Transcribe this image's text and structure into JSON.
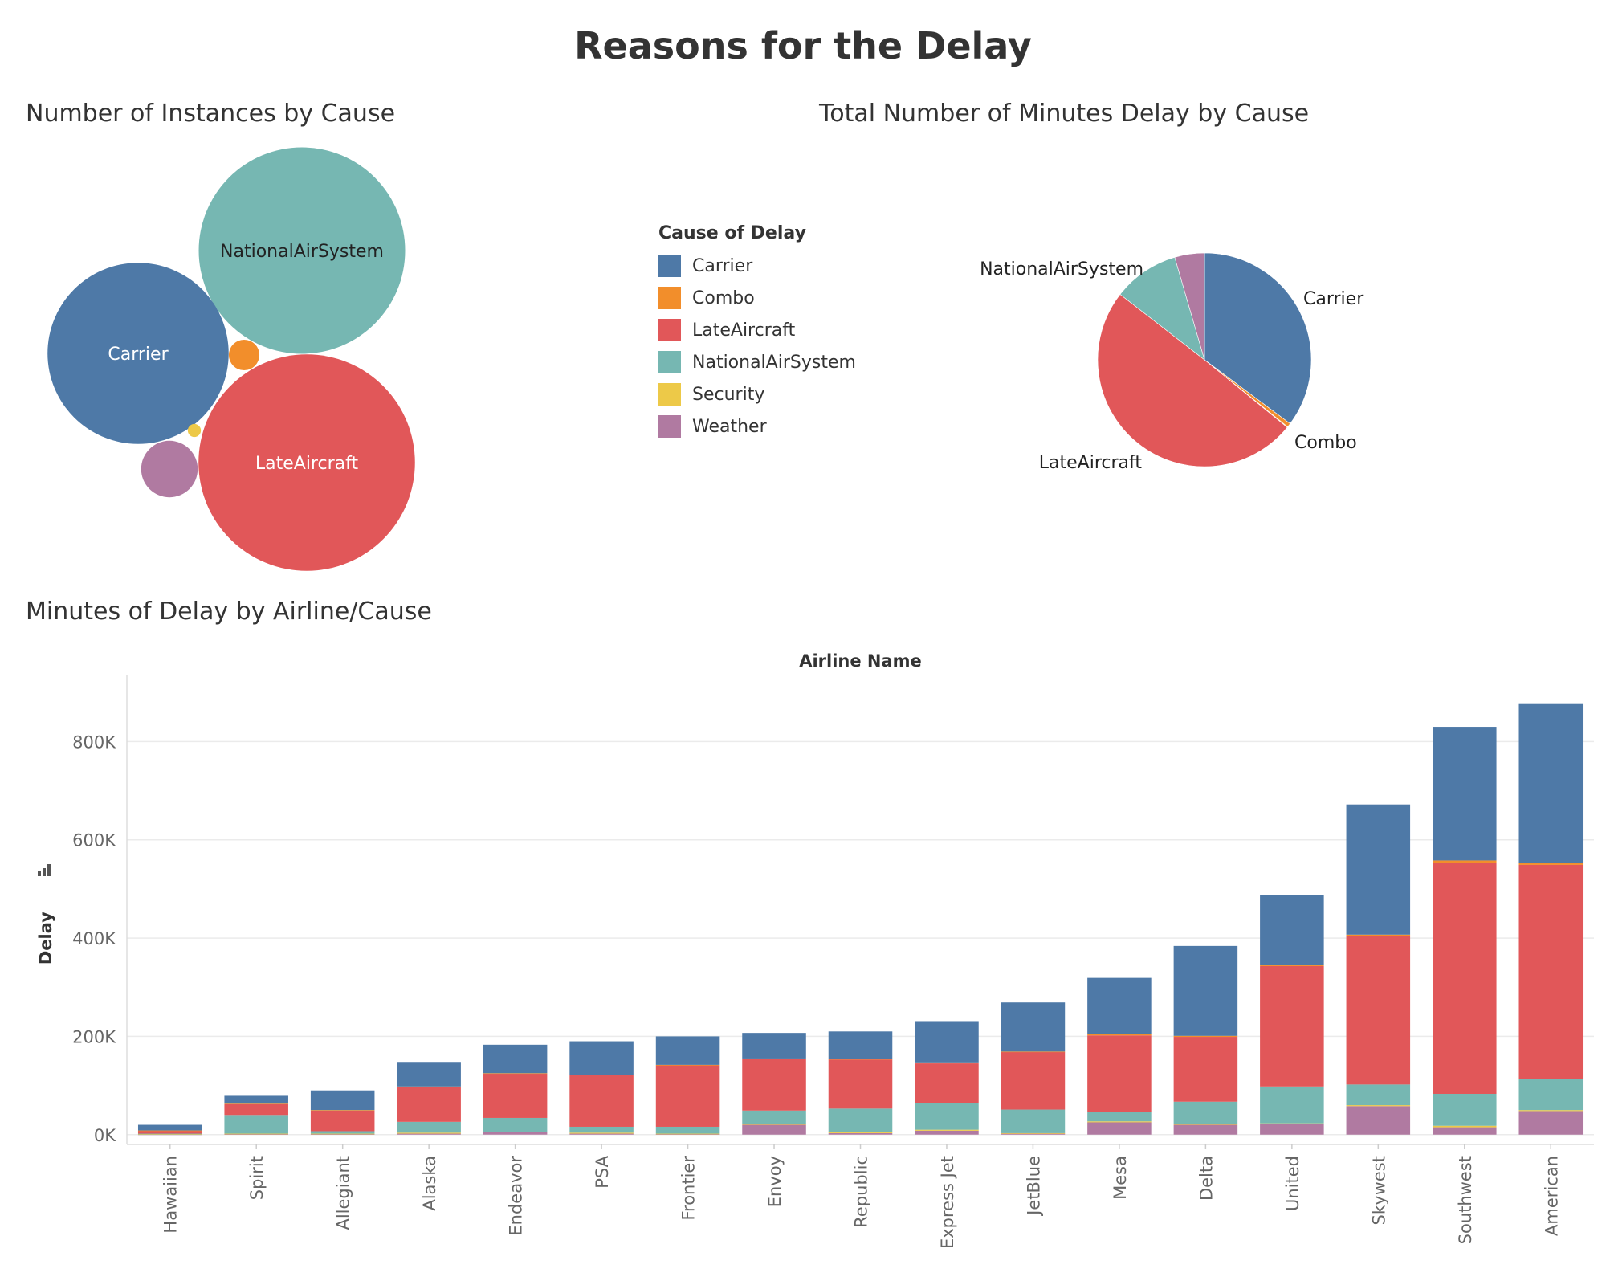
{
  "title": "Reasons for the Delay",
  "colors": {
    "Carrier": "#4e79a7",
    "Combo": "#f28e2b",
    "LateAircraft": "#e15759",
    "NationalAirSystem": "#76b7b2",
    "Security": "#edc948",
    "Weather": "#b07aa1"
  },
  "legend": {
    "title": "Cause of Delay",
    "items": [
      "Carrier",
      "Combo",
      "LateAircraft",
      "NationalAirSystem",
      "Security",
      "Weather"
    ]
  },
  "chart_data": [
    {
      "type": "bubble",
      "title": "Number of Instances by Cause",
      "bubbles": [
        {
          "name": "NationalAirSystem",
          "value": 100,
          "label": "NationalAirSystem"
        },
        {
          "name": "Carrier",
          "value": 77,
          "label": "Carrier"
        },
        {
          "name": "LateAircraft",
          "value": 110,
          "label": "LateAircraft"
        },
        {
          "name": "Combo",
          "value": 2.2,
          "label": ""
        },
        {
          "name": "Weather",
          "value": 7.5,
          "label": ""
        },
        {
          "name": "Security",
          "value": 0.4,
          "label": ""
        }
      ]
    },
    {
      "type": "pie",
      "title": "Total Number of Minutes Delay by Cause",
      "slices": [
        {
          "name": "Carrier",
          "value": 35.2,
          "label": "Carrier"
        },
        {
          "name": "Combo",
          "value": 0.6,
          "label": "Combo"
        },
        {
          "name": "Security",
          "value": 0.1,
          "label": ""
        },
        {
          "name": "LateAircraft",
          "value": 49.6,
          "label": "LateAircraft"
        },
        {
          "name": "NationalAirSystem",
          "value": 10.0,
          "label": "NationalAirSystem"
        },
        {
          "name": "Weather",
          "value": 4.5,
          "label": ""
        }
      ]
    },
    {
      "type": "bar",
      "stacked": true,
      "title": "Minutes of Delay by Airline/Cause",
      "xlabel": "Airline Name",
      "ylabel": "Delay",
      "ylim": [
        -20000,
        920000
      ],
      "yticks": [
        0,
        200000,
        400000,
        600000,
        800000
      ],
      "ytick_labels": [
        "0K",
        "200K",
        "400K",
        "600K",
        "800K"
      ],
      "grid": true,
      "categories": [
        "Hawaiian",
        "Spirit",
        "Allegiant",
        "Alaska",
        "Endeavor",
        "PSA",
        "Frontier",
        "Envoy",
        "Republic",
        "Express Jet",
        "JetBlue",
        "Mesa",
        "Delta",
        "United",
        "Skywest",
        "Southwest",
        "American"
      ],
      "series": [
        {
          "name": "Weather",
          "values": [
            500,
            1000,
            1000,
            2000,
            5000,
            2000,
            1000,
            20000,
            3000,
            8000,
            2000,
            25000,
            20000,
            22000,
            58000,
            15000,
            48000
          ]
        },
        {
          "name": "Security",
          "values": [
            500,
            1000,
            1000,
            2000,
            1000,
            2000,
            1000,
            2000,
            2000,
            2000,
            1000,
            2000,
            2000,
            1000,
            2000,
            3000,
            2000
          ]
        },
        {
          "name": "NationalAirSystem",
          "values": [
            1000,
            38000,
            5000,
            22000,
            28000,
            12000,
            14000,
            27000,
            48000,
            55000,
            48000,
            20000,
            45000,
            75000,
            42000,
            65000,
            64000
          ]
        },
        {
          "name": "LateAircraft",
          "values": [
            6000,
            22000,
            42000,
            71000,
            90000,
            105000,
            125000,
            105000,
            100000,
            80000,
            117000,
            155000,
            132000,
            245000,
            303000,
            470000,
            435000
          ]
        },
        {
          "name": "Combo",
          "values": [
            500,
            1000,
            1000,
            1000,
            1000,
            1000,
            1000,
            1000,
            1000,
            2000,
            1000,
            2000,
            2000,
            3000,
            2000,
            5000,
            4000
          ]
        },
        {
          "name": "Carrier",
          "values": [
            11500,
            16000,
            40000,
            50000,
            58000,
            68000,
            58000,
            52000,
            56000,
            84000,
            100000,
            115000,
            183000,
            141000,
            265000,
            272000,
            325000
          ]
        }
      ]
    }
  ]
}
